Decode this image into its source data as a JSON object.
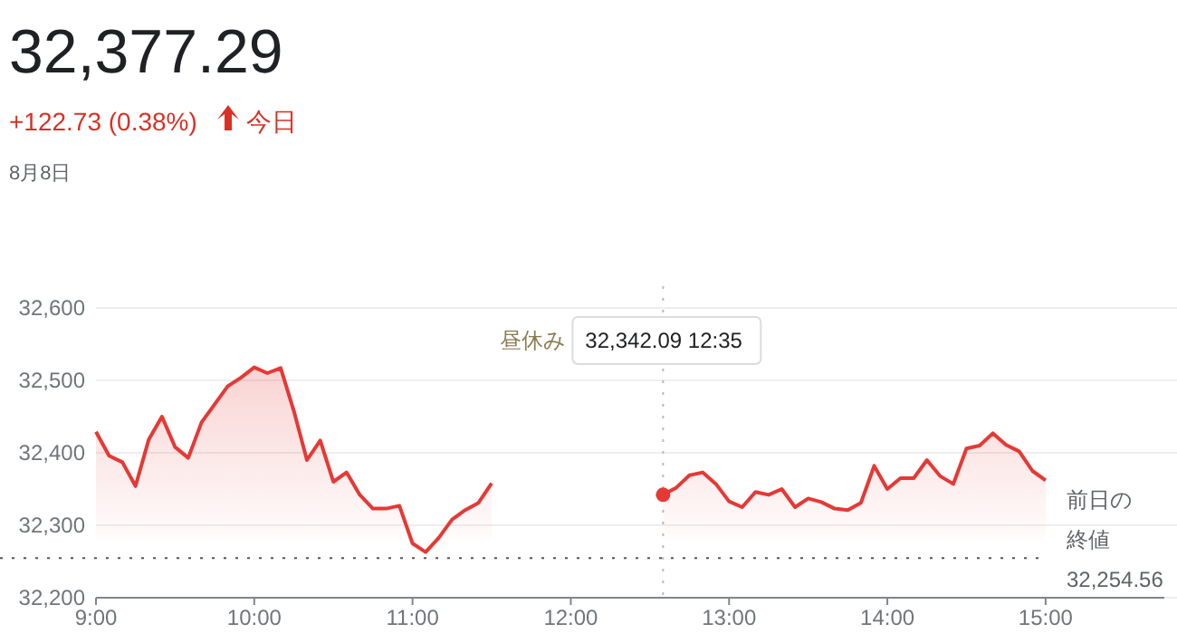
{
  "chart_data": {
    "type": "area",
    "title": "32,377.29",
    "subtitle": "+122.73 (0.38%)",
    "annotations": [
      "今日",
      "8月8日",
      "昼休み",
      "32,342.09 12:35",
      "32,254.56"
    ],
    "x": [
      9,
      9.083,
      9.167,
      9.25,
      9.333,
      9.417,
      9.5,
      9.583,
      9.667,
      9.75,
      9.833,
      9.917,
      10,
      10.083,
      10.167,
      10.25,
      10.333,
      10.417,
      10.5,
      10.583,
      10.667,
      10.75,
      10.833,
      10.917,
      11,
      11.083,
      11.167,
      11.25,
      11.333,
      11.417,
      11.5,
      12,
      12.583,
      12.667,
      12.75,
      12.833,
      12.917,
      13,
      13.083,
      13.167,
      13.25,
      13.333,
      13.417,
      13.5,
      13.583,
      13.667,
      13.75,
      13.833,
      13.917,
      14,
      14.083,
      14.167,
      14.25,
      14.333,
      14.417,
      14.5,
      14.583,
      14.667,
      14.75,
      14.833,
      14.917,
      15
    ],
    "series": [
      {
        "color": "#e53935",
        "values": [
          32429,
          32396,
          32387,
          32354,
          32418,
          32450,
          32408,
          32393,
          32442,
          32467,
          32492,
          32504,
          32518,
          32510,
          32517,
          32458,
          32390,
          32417,
          32360,
          32373,
          32342,
          32323,
          32323,
          32327,
          32275,
          32263,
          32283,
          32308,
          32321,
          32331,
          32358,
          null,
          32342.09,
          32352,
          32369,
          32373,
          32357,
          32333,
          32325,
          32346,
          32342,
          32350,
          32325,
          32337,
          32332,
          32323,
          32321,
          32331,
          32382,
          32350,
          32365,
          32365,
          32390,
          32368,
          32357,
          32406,
          32410,
          32427,
          32411,
          32402,
          32375,
          32362
        ]
      }
    ],
    "xlim": [
      9,
      15.75
    ],
    "xticks": [
      {
        "value": 9,
        "label": "9:00"
      },
      {
        "value": 10,
        "label": "10:00"
      },
      {
        "value": 11,
        "label": "11:00"
      },
      {
        "value": 12,
        "label": "12:00"
      },
      {
        "value": 13,
        "label": "13:00"
      },
      {
        "value": 14,
        "label": "14:00"
      },
      {
        "value": 15,
        "label": "15:00"
      }
    ],
    "ylim": [
      32200,
      32600
    ],
    "yticks": [
      {
        "value": 32200,
        "label": "32,200"
      },
      {
        "value": 32300,
        "label": "32,300"
      },
      {
        "value": 32400,
        "label": "32,400"
      },
      {
        "value": 32500,
        "label": "32,500"
      },
      {
        "value": 32600,
        "label": "32,600"
      }
    ],
    "grid": "y",
    "ref_lines": [
      {
        "axis": "y",
        "value": 32254.56,
        "label": "前日の終値",
        "line_style": "dotted",
        "color": "#555555"
      },
      {
        "axis": "x",
        "value": 12.583,
        "line_style": "dotted",
        "color": "#bbbbbb"
      }
    ]
  }
}
